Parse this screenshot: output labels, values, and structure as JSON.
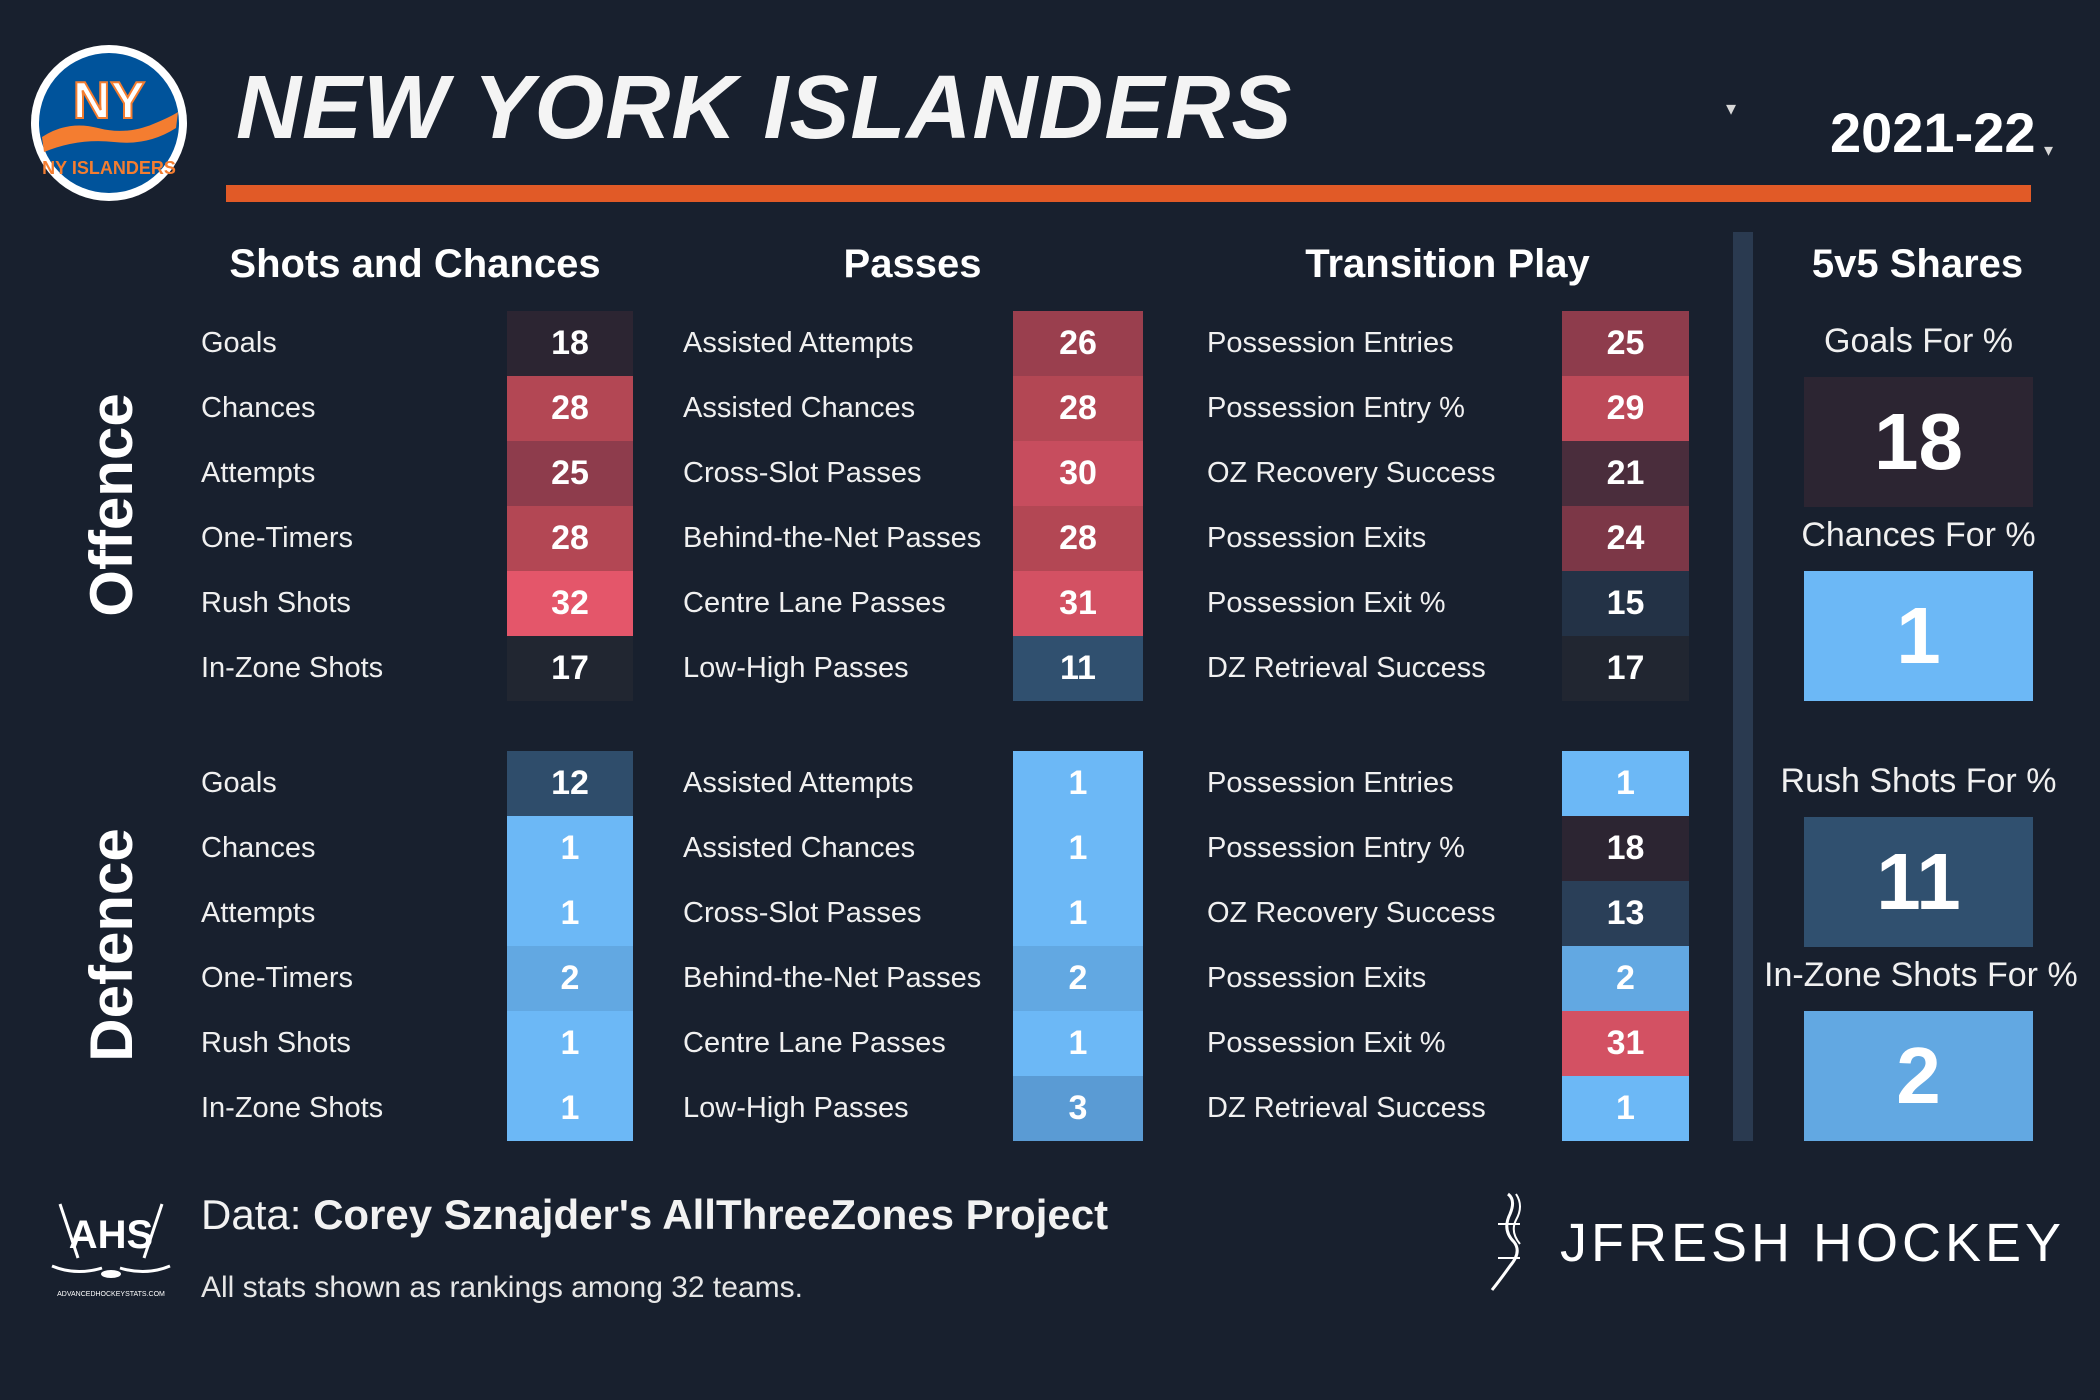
{
  "header": {
    "logo_text": "NY ISLANDERS",
    "team_name": "NEW YORK ISLANDERS",
    "team_dropdown_icon": "caret-down-icon",
    "season": "2021-22",
    "season_dropdown_icon": "caret-down-icon",
    "accent_color": "#e15a27"
  },
  "sections": {
    "shots": "Shots and Chances",
    "passes": "Passes",
    "transition": "Transition Play",
    "shares": "5v5 Shares"
  },
  "groups": {
    "offence": "Offence",
    "defence": "Defence"
  },
  "offence": {
    "shots": [
      {
        "label": "Goals",
        "rank": "18",
        "color": "#2c2532"
      },
      {
        "label": "Chances",
        "rank": "28",
        "color": "#b34754"
      },
      {
        "label": "Attempts",
        "rank": "25",
        "color": "#8e3c4c"
      },
      {
        "label": "One-Timers",
        "rank": "28",
        "color": "#b34754"
      },
      {
        "label": "Rush Shots",
        "rank": "32",
        "color": "#e4566a"
      },
      {
        "label": "In-Zone Shots",
        "rank": "17",
        "color": "#212631"
      }
    ],
    "passes": [
      {
        "label": "Assisted Attempts",
        "rank": "26",
        "color": "#9a3f4e"
      },
      {
        "label": "Assisted Chances",
        "rank": "28",
        "color": "#b34754"
      },
      {
        "label": "Cross-Slot Passes",
        "rank": "30",
        "color": "#c74d5e"
      },
      {
        "label": "Behind-the-Net Passes",
        "rank": "28",
        "color": "#b34754"
      },
      {
        "label": "Centre Lane Passes",
        "rank": "31",
        "color": "#d35163"
      },
      {
        "label": "Low-High Passes",
        "rank": "11",
        "color": "#30506f"
      }
    ],
    "transition": [
      {
        "label": "Possession Entries",
        "rank": "25",
        "color": "#8e3c4c"
      },
      {
        "label": "Possession Entry %",
        "rank": "29",
        "color": "#bd4a59"
      },
      {
        "label": "OZ Recovery Success",
        "rank": "21",
        "color": "#4a2d3c"
      },
      {
        "label": "Possession Exits",
        "rank": "24",
        "color": "#7c3747"
      },
      {
        "label": "Possession Exit %",
        "rank": "15",
        "color": "#233246"
      },
      {
        "label": "DZ Retrieval Success",
        "rank": "17",
        "color": "#212631"
      }
    ]
  },
  "defence": {
    "shots": [
      {
        "label": "Goals",
        "rank": "12",
        "color": "#2f4d6b"
      },
      {
        "label": "Chances",
        "rank": "1",
        "color": "#6cb8f6"
      },
      {
        "label": "Attempts",
        "rank": "1",
        "color": "#6cb8f6"
      },
      {
        "label": "One-Timers",
        "rank": "2",
        "color": "#62a8e2"
      },
      {
        "label": "Rush Shots",
        "rank": "1",
        "color": "#6cb8f6"
      },
      {
        "label": "In-Zone Shots",
        "rank": "1",
        "color": "#6cb8f6"
      }
    ],
    "passes": [
      {
        "label": "Assisted Attempts",
        "rank": "1",
        "color": "#6cb8f6"
      },
      {
        "label": "Assisted Chances",
        "rank": "1",
        "color": "#6cb8f6"
      },
      {
        "label": "Cross-Slot Passes",
        "rank": "1",
        "color": "#6cb8f6"
      },
      {
        "label": "Behind-the-Net Passes",
        "rank": "2",
        "color": "#62a8e2"
      },
      {
        "label": "Centre Lane Passes",
        "rank": "1",
        "color": "#6cb8f6"
      },
      {
        "label": "Low-High Passes",
        "rank": "3",
        "color": "#5a9bd4"
      }
    ],
    "transition": [
      {
        "label": "Possession Entries",
        "rank": "1",
        "color": "#6cb8f6"
      },
      {
        "label": "Possession Entry %",
        "rank": "18",
        "color": "#2c2532"
      },
      {
        "label": "OZ Recovery Success",
        "rank": "13",
        "color": "#2a3f58"
      },
      {
        "label": "Possession Exits",
        "rank": "2",
        "color": "#62a8e2"
      },
      {
        "label": "Possession Exit %",
        "rank": "31",
        "color": "#d35163"
      },
      {
        "label": "DZ Retrieval Success",
        "rank": "1",
        "color": "#6cb8f6"
      }
    ]
  },
  "shares": [
    {
      "label": "Goals For %",
      "rank": "18",
      "color": "#2c2532"
    },
    {
      "label": "Chances For %",
      "rank": "1",
      "color": "#6cb8f6"
    },
    {
      "label": "Rush Shots For %",
      "rank": "11",
      "color": "#30506f"
    },
    {
      "label": "In-Zone Shots For %",
      "rank": "2",
      "color": "#62a8e2"
    }
  ],
  "footer": {
    "ahs_logo_text": "AHS",
    "ahs_site": "ADVANCEDHOCKEYSTATS.COM",
    "data_prefix": "Data: ",
    "data_source": "Corey Sznajder's AllThreeZones Project",
    "note": "All stats shown as rankings among 32 teams.",
    "brand": "JFRESH HOCKEY"
  }
}
